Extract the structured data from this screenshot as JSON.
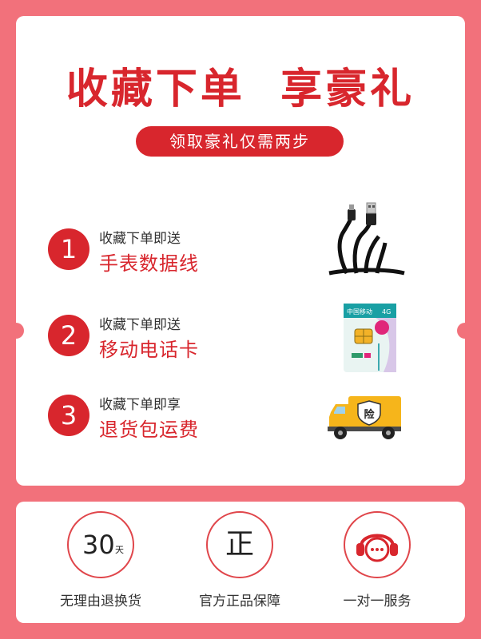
{
  "headline": "收藏下单  享豪礼",
  "subtitle": "领取豪礼仅需两步",
  "steps": [
    {
      "number": "1",
      "action": "收藏下单即送",
      "gift": "手表数据线",
      "icon": "usb-cable-icon"
    },
    {
      "number": "2",
      "action": "收藏下单即送",
      "gift": "移动电话卡",
      "icon": "sim-card-icon"
    },
    {
      "number": "3",
      "action": "收藏下单即享",
      "gift": "退货包运费",
      "icon": "delivery-truck-icon"
    }
  ],
  "sim_card": {
    "brand": "中国移动",
    "network": "4G"
  },
  "truck_label": "险",
  "guarantees": [
    {
      "mark": "30",
      "mark_small": "天",
      "label": "无理由退换货",
      "icon": "30-days-icon"
    },
    {
      "mark": "正",
      "label": "官方正品保障",
      "icon": "authentic-icon"
    },
    {
      "label": "一对一服务",
      "icon": "customer-service-icon"
    }
  ],
  "colors": {
    "background": "#f2717b",
    "accent": "#d8262d",
    "card": "#ffffff"
  }
}
